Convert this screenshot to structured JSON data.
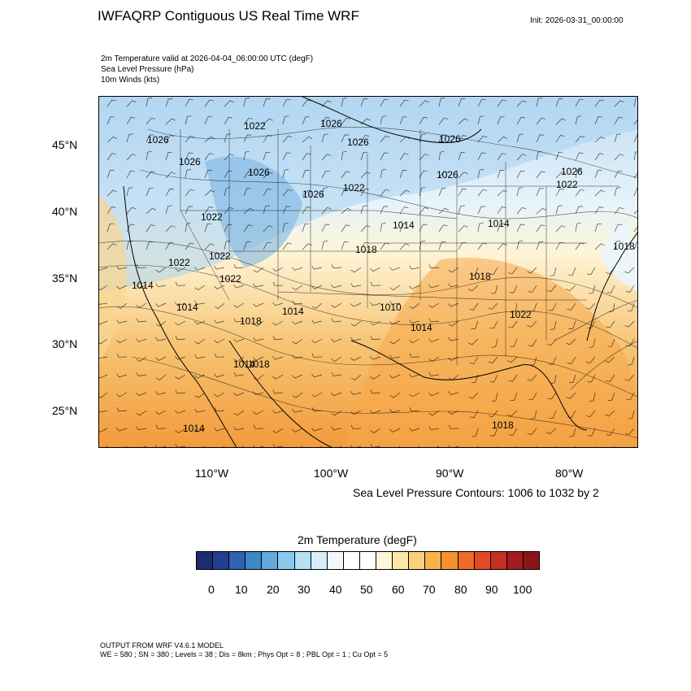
{
  "title": "IWFAQRP Contiguous US Real Time WRF",
  "init": "Init: 2026-03-31_00:00:00",
  "fields": [
    "2m Temperature valid at 2026-04-04_06:00:00 UTC   (degF)",
    "Sea Level Pressure   (hPa)",
    "10m Winds   (kts)"
  ],
  "map": {
    "lat_labels": [
      "45°N",
      "40°N",
      "35°N",
      "30°N",
      "25°N"
    ],
    "lon_labels": [
      "110°W",
      "100°W",
      "90°W",
      "80°W"
    ],
    "pressure_labels": [
      "1022",
      "1026",
      "1026",
      "1026",
      "1026",
      "1026",
      "1026",
      "1026",
      "1026",
      "1026",
      "1022",
      "1022",
      "1022",
      "1022",
      "1022",
      "1022",
      "1018",
      "1018",
      "1018",
      "1018",
      "1018",
      "1014",
      "1014",
      "1014",
      "1014",
      "1014",
      "1014",
      "1014",
      "1010",
      "1018",
      "1022",
      "1014"
    ],
    "land_color": "#f0c070",
    "ocean_color": "#f5b35a"
  },
  "contour_note": "Sea Level Pressure Contours: 1006 to 1032 by 2",
  "colorbar": {
    "title": "2m Temperature  (degF)",
    "labels": [
      "0",
      "10",
      "20",
      "30",
      "40",
      "50",
      "60",
      "70",
      "80",
      "90",
      "100"
    ],
    "colors": [
      "#1c2c6e",
      "#22408e",
      "#2d63b0",
      "#3d87c9",
      "#5fa9dc",
      "#8ac8ec",
      "#b4dff5",
      "#d6eefa",
      "#eff8fd",
      "#ffffff",
      "#ffffff",
      "#fff6d8",
      "#fde7a8",
      "#fbd07c",
      "#f9b24c",
      "#f6912d",
      "#ee6b27",
      "#e24a27",
      "#c72f25",
      "#a41d1e",
      "#8a1518"
    ]
  },
  "model": {
    "line1": "OUTPUT FROM WRF V4.6.1 MODEL",
    "line2": "WE = 580 ; SN = 380 ; Levels = 38 ; Dis = 8km ; Phys Opt = 8 ; PBL Opt = 1 ; Cu Opt = 5"
  }
}
